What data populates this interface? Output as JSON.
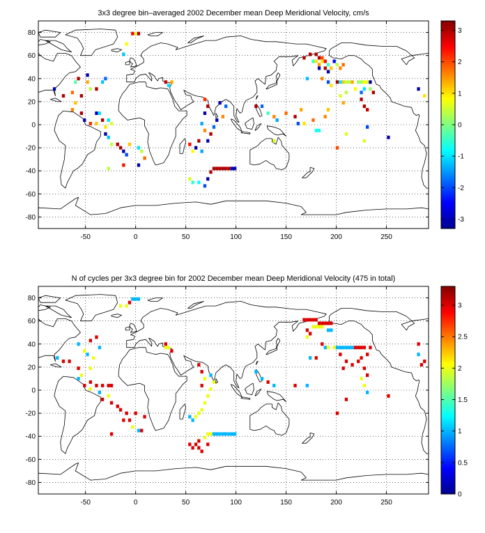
{
  "chart_data": [
    {
      "type": "heatmap",
      "title": "3x3 degree bin–averaged 2002 December mean Deep Meridional Velocity, cm/s",
      "xlim": [
        -97,
        292
      ],
      "ylim": [
        -90,
        90
      ],
      "x_ticks": [
        -50,
        0,
        50,
        100,
        150,
        200,
        250
      ],
      "y_ticks": [
        -80,
        -60,
        -40,
        -20,
        0,
        20,
        40,
        60,
        80
      ],
      "grid": true,
      "colorbar": {
        "range": [
          -3.3,
          3.3
        ],
        "ticks": [
          -3,
          -2,
          -1,
          0,
          1,
          2,
          3
        ]
      },
      "cells": [
        [
          -3,
          79,
          2.5
        ],
        [
          0,
          79,
          0.5
        ],
        [
          3,
          79,
          3.0
        ],
        [
          -12,
          61,
          -1.2
        ],
        [
          -9,
          70,
          0.8
        ],
        [
          -57,
          40,
          3.0
        ],
        [
          -60,
          37,
          -0.3
        ],
        [
          -48,
          43,
          -3.0
        ],
        [
          -48,
          37,
          1.4
        ],
        [
          -45,
          31,
          0.4
        ],
        [
          -39,
          31,
          3.0
        ],
        [
          -33,
          37,
          -1.2
        ],
        [
          -30,
          40,
          -1.8
        ],
        [
          -81,
          31,
          -3.0
        ],
        [
          -72,
          25,
          3.0
        ],
        [
          -63,
          28,
          1.8
        ],
        [
          -54,
          25,
          3.0
        ],
        [
          -60,
          19,
          1.2
        ],
        [
          -63,
          13,
          1.6
        ],
        [
          -54,
          10,
          3.0
        ],
        [
          -51,
          4,
          -3.0
        ],
        [
          -45,
          1,
          2.2
        ],
        [
          -39,
          10,
          -3.0
        ],
        [
          -36,
          10,
          -1.0
        ],
        [
          -39,
          1,
          1.2
        ],
        [
          -33,
          4,
          3.0
        ],
        [
          -30,
          -2,
          1.0
        ],
        [
          -27,
          4,
          -1.0
        ],
        [
          -24,
          1,
          0.6
        ],
        [
          -30,
          -8,
          -3.0
        ],
        [
          -27,
          -11,
          -1.2
        ],
        [
          -24,
          -17,
          0.4
        ],
        [
          -18,
          -17,
          3.0
        ],
        [
          -15,
          -20,
          3.0
        ],
        [
          -12,
          -23,
          -3.0
        ],
        [
          -9,
          -26,
          -2.0
        ],
        [
          -6,
          -17,
          1.2
        ],
        [
          3,
          -20,
          -1.0
        ],
        [
          6,
          -23,
          0.4
        ],
        [
          9,
          -29,
          1.8
        ],
        [
          -12,
          -35,
          2.4
        ],
        [
          -27,
          -38,
          0.4
        ],
        [
          3,
          -35,
          -3.0
        ],
        [
          30,
          37,
          2.8
        ],
        [
          33,
          34,
          -1.0
        ],
        [
          36,
          37,
          1.4
        ],
        [
          69,
          22,
          2.2
        ],
        [
          72,
          16,
          3.0
        ],
        [
          69,
          10,
          -3.0
        ],
        [
          66,
          1,
          -1.4
        ],
        [
          69,
          -5,
          1.6
        ],
        [
          63,
          -14,
          3.0
        ],
        [
          60,
          -20,
          -3.0
        ],
        [
          57,
          -23,
          0.8
        ],
        [
          54,
          -17,
          2.4
        ],
        [
          84,
          19,
          -3.0
        ],
        [
          90,
          16,
          -1.8
        ],
        [
          87,
          7,
          1.6
        ],
        [
          81,
          4,
          -3.0
        ],
        [
          78,
          -2,
          -1.8
        ],
        [
          75,
          -8,
          3.0
        ],
        [
          72,
          -14,
          -3.0
        ],
        [
          66,
          -23,
          -1.4
        ],
        [
          78,
          -38,
          3.0
        ],
        [
          81,
          -38,
          3.0
        ],
        [
          84,
          -38,
          3.0
        ],
        [
          87,
          -38,
          3.0
        ],
        [
          90,
          -38,
          3.0
        ],
        [
          93,
          -38,
          3.0
        ],
        [
          96,
          -38,
          -3.0
        ],
        [
          99,
          -38,
          -3.0
        ],
        [
          75,
          -41,
          3.0
        ],
        [
          72,
          -47,
          -3.0
        ],
        [
          54,
          -47,
          0.6
        ],
        [
          57,
          -50,
          -0.5
        ],
        [
          63,
          -50,
          -0.8
        ],
        [
          69,
          -53,
          -2.0
        ],
        [
          120,
          16,
          3.0
        ],
        [
          126,
          16,
          -1.8
        ],
        [
          132,
          10,
          -0.4
        ],
        [
          138,
          7,
          1.6
        ],
        [
          141,
          4,
          -1.4
        ],
        [
          138,
          -14,
          0.6
        ],
        [
          150,
          10,
          1.8
        ],
        [
          159,
          7,
          3.0
        ],
        [
          162,
          1,
          -2.0
        ],
        [
          165,
          13,
          1.4
        ],
        [
          168,
          1,
          1.0
        ],
        [
          177,
          4,
          1.8
        ],
        [
          180,
          -5,
          -0.7
        ],
        [
          183,
          -5,
          -0.7
        ],
        [
          189,
          7,
          1.6
        ],
        [
          192,
          13,
          1.2
        ],
        [
          201,
          -20,
          2.0
        ],
        [
          210,
          -8,
          0.6
        ],
        [
          228,
          -14,
          0.6
        ],
        [
          231,
          -2,
          -2.0
        ],
        [
          252,
          -11,
          -3.0
        ],
        [
          168,
          58,
          3.0
        ],
        [
          174,
          61,
          3.0
        ],
        [
          180,
          61,
          3.0
        ],
        [
          183,
          58,
          3.0
        ],
        [
          186,
          58,
          2.0
        ],
        [
          177,
          55,
          -0.4
        ],
        [
          180,
          55,
          1.0
        ],
        [
          183,
          52,
          1.5
        ],
        [
          186,
          55,
          1.0
        ],
        [
          189,
          55,
          2.5
        ],
        [
          192,
          52,
          -0.4
        ],
        [
          183,
          49,
          -3.0
        ],
        [
          189,
          49,
          3.0
        ],
        [
          192,
          46,
          -3.0
        ],
        [
          195,
          49,
          1.2
        ],
        [
          198,
          55,
          -2.5
        ],
        [
          201,
          52,
          0.4
        ],
        [
          204,
          49,
          1.6
        ],
        [
          207,
          52,
          1.8
        ],
        [
          186,
          40,
          1.6
        ],
        [
          192,
          37,
          -2.0
        ],
        [
          195,
          34,
          1.0
        ],
        [
          201,
          37,
          3.0
        ],
        [
          204,
          37,
          -1.0
        ],
        [
          207,
          37,
          1.2
        ],
        [
          210,
          37,
          0.4
        ],
        [
          213,
          37,
          0.4
        ],
        [
          216,
          37,
          1.4
        ],
        [
          222,
          37,
          0.2
        ],
        [
          225,
          37,
          0.2
        ],
        [
          228,
          37,
          0.8
        ],
        [
          231,
          37,
          0.6
        ],
        [
          234,
          37,
          -3.0
        ],
        [
          228,
          31,
          -1.0
        ],
        [
          219,
          31,
          0.8
        ],
        [
          210,
          28,
          0.4
        ],
        [
          204,
          25,
          0.6
        ],
        [
          207,
          19,
          1.4
        ],
        [
          225,
          22,
          3.0
        ],
        [
          228,
          16,
          3.0
        ],
        [
          231,
          13,
          2.8
        ],
        [
          234,
          31,
          0.2
        ],
        [
          237,
          28,
          3.0
        ],
        [
          225,
          28,
          -1.8
        ],
        [
          282,
          31,
          -3.0
        ],
        [
          288,
          25,
          1.0
        ],
        [
          171,
          40,
          -1.2
        ]
      ]
    },
    {
      "type": "heatmap",
      "title": "N of cycles per 3x3 degree bin for 2002 December mean Deep Meridional Velocity (475 in total)",
      "xlim": [
        -97,
        292
      ],
      "ylim": [
        -90,
        90
      ],
      "x_ticks": [
        -50,
        0,
        50,
        100,
        150,
        200,
        250
      ],
      "y_ticks": [
        -80,
        -60,
        -40,
        -20,
        0,
        20,
        40,
        60,
        80
      ],
      "grid": true,
      "colorbar": {
        "range": [
          0,
          3.3
        ],
        "ticks": [
          0,
          0.5,
          1,
          1.5,
          2,
          2.5,
          3
        ]
      },
      "cells": [
        [
          -3,
          79,
          1.0
        ],
        [
          0,
          79,
          1.0
        ],
        [
          3,
          79,
          1.0
        ],
        [
          -15,
          73,
          2.0
        ],
        [
          -9,
          73,
          2.0
        ],
        [
          -6,
          76,
          3.0
        ],
        [
          -57,
          40,
          1.0
        ],
        [
          -45,
          43,
          3.0
        ],
        [
          -39,
          46,
          3.0
        ],
        [
          -36,
          37,
          1.0
        ],
        [
          -51,
          34,
          2.0
        ],
        [
          -48,
          31,
          1.0
        ],
        [
          -42,
          28,
          2.0
        ],
        [
          -78,
          28,
          1.0
        ],
        [
          -72,
          25,
          3.0
        ],
        [
          -66,
          25,
          3.0
        ],
        [
          -57,
          19,
          3.0
        ],
        [
          -45,
          19,
          2.0
        ],
        [
          -54,
          13,
          2.0
        ],
        [
          -57,
          10,
          1.0
        ],
        [
          -51,
          4,
          3.0
        ],
        [
          -45,
          7,
          3.0
        ],
        [
          -39,
          4,
          3.0
        ],
        [
          -33,
          4,
          3.0
        ],
        [
          -27,
          4,
          3.0
        ],
        [
          -24,
          4,
          3.0
        ],
        [
          -45,
          1,
          2.0
        ],
        [
          -36,
          -2,
          1.0
        ],
        [
          -33,
          -8,
          3.0
        ],
        [
          -27,
          -5,
          2.0
        ],
        [
          -24,
          -11,
          3.0
        ],
        [
          -18,
          -14,
          3.0
        ],
        [
          -15,
          -17,
          3.0
        ],
        [
          -9,
          -20,
          3.0
        ],
        [
          -12,
          -26,
          3.0
        ],
        [
          -6,
          -26,
          3.0
        ],
        [
          -3,
          -32,
          2.0
        ],
        [
          0,
          -20,
          3.0
        ],
        [
          3,
          -35,
          1.0
        ],
        [
          6,
          -35,
          3.0
        ],
        [
          9,
          -23,
          3.0
        ],
        [
          -24,
          -38,
          3.0
        ],
        [
          30,
          37,
          2.0
        ],
        [
          33,
          37,
          2.0
        ],
        [
          36,
          34,
          3.0
        ],
        [
          30,
          40,
          3.0
        ],
        [
          63,
          22,
          3.0
        ],
        [
          66,
          16,
          3.0
        ],
        [
          69,
          10,
          2.0
        ],
        [
          66,
          4,
          3.0
        ],
        [
          75,
          13,
          1.0
        ],
        [
          78,
          7,
          2.0
        ],
        [
          75,
          1,
          2.0
        ],
        [
          72,
          -5,
          2.0
        ],
        [
          69,
          -11,
          2.0
        ],
        [
          66,
          -17,
          2.0
        ],
        [
          63,
          -20,
          2.0
        ],
        [
          60,
          -23,
          2.0
        ],
        [
          57,
          -26,
          1.0
        ],
        [
          54,
          -23,
          1.0
        ],
        [
          72,
          -38,
          2.0
        ],
        [
          75,
          -38,
          2.0
        ],
        [
          78,
          -38,
          1.0
        ],
        [
          81,
          -38,
          1.0
        ],
        [
          84,
          -38,
          1.0
        ],
        [
          87,
          -38,
          1.0
        ],
        [
          90,
          -38,
          1.0
        ],
        [
          93,
          -38,
          1.0
        ],
        [
          96,
          -38,
          1.0
        ],
        [
          99,
          -38,
          1.0
        ],
        [
          69,
          -41,
          2.0
        ],
        [
          54,
          -47,
          3.0
        ],
        [
          57,
          -50,
          3.0
        ],
        [
          63,
          -50,
          3.0
        ],
        [
          66,
          -53,
          3.0
        ],
        [
          72,
          -47,
          3.0
        ],
        [
          60,
          -47,
          3.0
        ],
        [
          63,
          -44,
          3.0
        ],
        [
          120,
          16,
          1.0
        ],
        [
          126,
          10,
          1.0
        ],
        [
          132,
          7,
          3.0
        ],
        [
          138,
          4,
          1.0
        ],
        [
          159,
          4,
          3.0
        ],
        [
          171,
          4,
          1.0
        ],
        [
          201,
          -20,
          3.0
        ],
        [
          210,
          -8,
          3.0
        ],
        [
          231,
          -2,
          1.0
        ],
        [
          252,
          -5,
          3.0
        ],
        [
          168,
          61,
          3.0
        ],
        [
          171,
          61,
          3.0
        ],
        [
          174,
          61,
          3.0
        ],
        [
          177,
          61,
          3.0
        ],
        [
          180,
          61,
          3.0
        ],
        [
          183,
          58,
          3.0
        ],
        [
          186,
          58,
          3.0
        ],
        [
          189,
          58,
          3.0
        ],
        [
          192,
          58,
          3.0
        ],
        [
          195,
          58,
          3.0
        ],
        [
          177,
          55,
          2.0
        ],
        [
          180,
          55,
          2.0
        ],
        [
          183,
          55,
          2.0
        ],
        [
          186,
          55,
          2.0
        ],
        [
          192,
          52,
          1.0
        ],
        [
          195,
          52,
          1.0
        ],
        [
          171,
          52,
          3.0
        ],
        [
          174,
          49,
          3.0
        ],
        [
          171,
          46,
          2.0
        ],
        [
          186,
          40,
          3.0
        ],
        [
          189,
          37,
          1.0
        ],
        [
          192,
          37,
          2.0
        ],
        [
          198,
          37,
          2.0
        ],
        [
          201,
          37,
          1.0
        ],
        [
          204,
          37,
          1.0
        ],
        [
          207,
          37,
          1.0
        ],
        [
          210,
          37,
          1.0
        ],
        [
          213,
          37,
          1.0
        ],
        [
          216,
          37,
          1.0
        ],
        [
          219,
          37,
          3.0
        ],
        [
          222,
          37,
          3.0
        ],
        [
          225,
          37,
          3.0
        ],
        [
          228,
          37,
          3.0
        ],
        [
          234,
          37,
          3.0
        ],
        [
          231,
          31,
          3.0
        ],
        [
          225,
          28,
          3.0
        ],
        [
          222,
          25,
          3.0
        ],
        [
          216,
          22,
          3.0
        ],
        [
          228,
          19,
          3.0
        ],
        [
          231,
          13,
          3.0
        ],
        [
          225,
          10,
          2.0
        ],
        [
          228,
          4,
          2.0
        ],
        [
          210,
          25,
          3.0
        ],
        [
          204,
          31,
          3.0
        ],
        [
          207,
          19,
          3.0
        ],
        [
          282,
          31,
          1.0
        ],
        [
          288,
          25,
          3.0
        ],
        [
          285,
          22,
          3.0
        ],
        [
          282,
          40,
          3.0
        ],
        [
          180,
          28,
          3.0
        ],
        [
          174,
          28,
          1.0
        ]
      ]
    }
  ]
}
